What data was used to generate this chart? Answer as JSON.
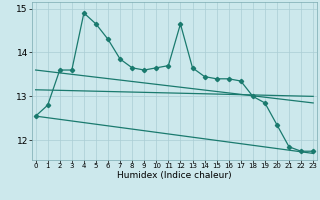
{
  "xlabel": "Humidex (Indice chaleur)",
  "background_color": "#cce8ec",
  "grid_color": "#aacdd4",
  "line_color": "#1a7a6e",
  "x_values": [
    0,
    1,
    2,
    3,
    4,
    5,
    6,
    7,
    8,
    9,
    10,
    11,
    12,
    13,
    14,
    15,
    16,
    17,
    18,
    19,
    20,
    21,
    22,
    23
  ],
  "y_main": [
    12.55,
    12.8,
    13.6,
    13.6,
    14.9,
    14.65,
    14.3,
    13.85,
    13.65,
    13.6,
    13.65,
    13.7,
    14.65,
    13.65,
    13.45,
    13.4,
    13.4,
    13.35,
    13.0,
    12.85,
    12.35,
    11.85,
    11.75,
    11.75
  ],
  "trend1_x": [
    0,
    23
  ],
  "trend1_y": [
    12.55,
    11.7
  ],
  "trend2_x": [
    0,
    23
  ],
  "trend2_y": [
    13.6,
    12.85
  ],
  "trend3_x": [
    0,
    23
  ],
  "trend3_y": [
    13.15,
    13.0
  ],
  "ylim": [
    11.55,
    15.15
  ],
  "yticks": [
    12,
    13,
    14,
    15
  ],
  "xticks": [
    0,
    1,
    2,
    3,
    4,
    5,
    6,
    7,
    8,
    9,
    10,
    11,
    12,
    13,
    14,
    15,
    16,
    17,
    18,
    19,
    20,
    21,
    22,
    23
  ],
  "xlabel_fontsize": 6.5,
  "ytick_fontsize": 6.5,
  "xtick_fontsize": 5.0
}
